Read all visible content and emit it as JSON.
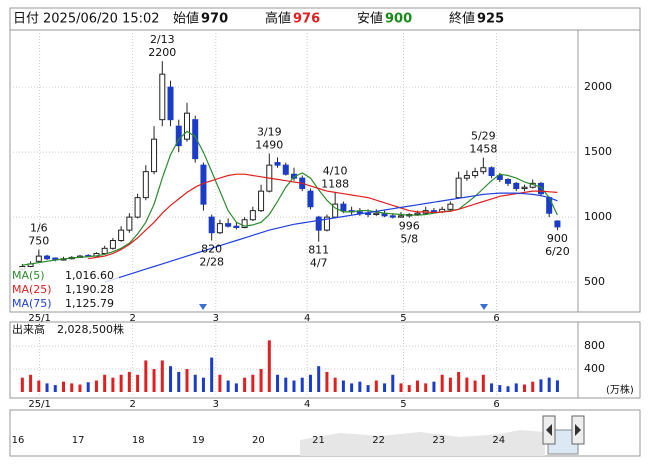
{
  "chart_data": {
    "type": "candlestick",
    "info": {
      "date_label": "日付",
      "date": "2025/06/20 15:02",
      "open_label": "始値",
      "open": 970,
      "high_label": "高値",
      "high": 976,
      "low_label": "安値",
      "low": 900,
      "close_label": "終値",
      "close": 925
    },
    "xlim": [
      -1.5,
      67.5
    ],
    "xticks": [
      {
        "value": 2.1,
        "label": "25/1"
      },
      {
        "value": 13.4,
        "label": "2"
      },
      {
        "value": 23.5,
        "label": "3"
      },
      {
        "value": 34.6,
        "label": "4"
      },
      {
        "value": 46.3,
        "label": "5"
      },
      {
        "value": 57.6,
        "label": "6"
      }
    ],
    "ylim": [
      270,
      2440
    ],
    "yticks": [
      500,
      1000,
      1500,
      2000
    ],
    "up_color": "#ffffff",
    "down_color": "#1a3cc8",
    "open": [
      600,
      620,
      660,
      700,
      685,
      670,
      680,
      690,
      705,
      700,
      720,
      760,
      820,
      900,
      1000,
      1150,
      1350,
      1750,
      2000,
      1700,
      1600,
      1750,
      1400,
      1000,
      880,
      950,
      930,
      920,
      980,
      1050,
      1200,
      1420,
      1400,
      1330,
      1300,
      1200,
      1000,
      900,
      1000,
      1100,
      1050,
      1040,
      1030,
      1020,
      1030,
      1010,
      1000,
      1010,
      1020,
      1030,
      1050,
      1040,
      1060,
      1150,
      1300,
      1320,
      1350,
      1380,
      1320,
      1290,
      1260,
      1220,
      1230,
      1260,
      1150,
      970
    ],
    "high": [
      640,
      660,
      750,
      710,
      690,
      695,
      700,
      710,
      715,
      730,
      780,
      840,
      930,
      1030,
      1180,
      1400,
      1700,
      2200,
      2050,
      1750,
      1880,
      1780,
      1420,
      1020,
      980,
      990,
      960,
      1000,
      1080,
      1250,
      1490,
      1460,
      1420,
      1380,
      1320,
      1220,
      1010,
      1020,
      1188,
      1120,
      1080,
      1070,
      1060,
      1060,
      1050,
      1030,
      1040,
      1030,
      1050,
      1080,
      1070,
      1080,
      1120,
      1350,
      1360,
      1380,
      1458,
      1390,
      1340,
      1300,
      1270,
      1250,
      1290,
      1270,
      1160,
      976
    ],
    "low": [
      590,
      610,
      650,
      670,
      660,
      665,
      675,
      685,
      690,
      695,
      715,
      750,
      810,
      880,
      990,
      1130,
      1330,
      1700,
      1700,
      1500,
      1580,
      1420,
      1050,
      820,
      870,
      920,
      905,
      915,
      970,
      1040,
      1190,
      1380,
      1320,
      1280,
      1200,
      1060,
      811,
      890,
      990,
      1030,
      1020,
      1010,
      1000,
      1010,
      1000,
      990,
      995,
      996,
      1010,
      1020,
      1030,
      1030,
      1050,
      1140,
      1280,
      1300,
      1330,
      1300,
      1270,
      1240,
      1200,
      1200,
      1220,
      1160,
      1000,
      900
    ],
    "close": [
      620,
      640,
      700,
      680,
      670,
      680,
      690,
      700,
      700,
      720,
      760,
      820,
      900,
      1000,
      1150,
      1350,
      1600,
      2100,
      1750,
      1550,
      1800,
      1450,
      1100,
      880,
      950,
      930,
      920,
      980,
      1050,
      1200,
      1400,
      1400,
      1330,
      1300,
      1220,
      1080,
      900,
      1000,
      1100,
      1050,
      1040,
      1030,
      1020,
      1030,
      1010,
      1000,
      1010,
      1020,
      1030,
      1050,
      1040,
      1060,
      1100,
      1300,
      1320,
      1350,
      1380,
      1320,
      1290,
      1260,
      1220,
      1230,
      1260,
      1180,
      1030,
      925
    ],
    "annotations": [
      {
        "date": "1/6",
        "value": 750
      },
      {
        "date": "2/13",
        "value": 2200
      },
      {
        "date": "2/28",
        "value": 820
      },
      {
        "date": "3/19",
        "value": 1490
      },
      {
        "date": "4/7",
        "value": 811
      },
      {
        "date": "4/10",
        "value": 1188
      },
      {
        "date": "5/8",
        "value": 996
      },
      {
        "date": "5/29",
        "value": 1458
      },
      {
        "date": "6/20",
        "value": 900
      }
    ],
    "series": [
      {
        "name": "MA(5)",
        "color": "#2e8b2e",
        "legend_value": {
          "value": 1016.6,
          "label": "1,016.60"
        },
        "values": [
          630,
          640,
          650,
          660,
          670,
          678,
          686,
          690,
          696,
          702,
          714,
          734,
          760,
          800,
          870,
          960,
          1100,
          1300,
          1480,
          1600,
          1660,
          1620,
          1500,
          1350,
          1200,
          1050,
          960,
          930,
          940,
          960,
          1020,
          1120,
          1230,
          1310,
          1340,
          1300,
          1210,
          1130,
          1070,
          1040,
          1040,
          1050,
          1050,
          1040,
          1030,
          1025,
          1020,
          1015,
          1015,
          1020,
          1030,
          1040,
          1050,
          1060,
          1110,
          1160,
          1220,
          1280,
          1330,
          1320,
          1300,
          1270,
          1250,
          1230,
          1150,
          1016.6
        ]
      },
      {
        "name": "MA(25)",
        "color": "#e02020",
        "legend_value": {
          "value": 1190.28,
          "label": "1,190.28"
        },
        "values": [
          null,
          null,
          null,
          null,
          null,
          null,
          null,
          null,
          680,
          690,
          700,
          720,
          750,
          790,
          840,
          900,
          960,
          1030,
          1090,
          1140,
          1190,
          1230,
          1260,
          1280,
          1300,
          1320,
          1330,
          1330,
          1320,
          1310,
          1300,
          1290,
          1280,
          1270,
          1260,
          1240,
          1220,
          1200,
          1190,
          1180,
          1170,
          1160,
          1150,
          1130,
          1110,
          1090,
          1070,
          1050,
          1040,
          1040,
          1035,
          1040,
          1045,
          1060,
          1080,
          1100,
          1120,
          1140,
          1160,
          1170,
          1180,
          1190,
          1200,
          1200,
          1195,
          1190.28
        ]
      },
      {
        "name": "MA(75)",
        "color": "#2040e0",
        "legend_value": {
          "value": 1125.79,
          "label": "1,125.79"
        },
        "values": [
          null,
          null,
          null,
          null,
          null,
          null,
          null,
          null,
          null,
          null,
          500,
          520,
          540,
          560,
          580,
          600,
          620,
          640,
          660,
          680,
          700,
          720,
          740,
          760,
          780,
          800,
          820,
          840,
          860,
          880,
          900,
          915,
          930,
          945,
          955,
          965,
          975,
          985,
          995,
          1005,
          1015,
          1025,
          1035,
          1045,
          1055,
          1065,
          1075,
          1085,
          1095,
          1105,
          1115,
          1125,
          1135,
          1145,
          1155,
          1165,
          1175,
          1180,
          1185,
          1185,
          1185,
          1180,
          1175,
          1165,
          1150,
          1125.79
        ]
      }
    ],
    "volume": {
      "title": "出来高",
      "latest": "2,028,500株",
      "unit": "(万株)",
      "ylim": [
        0,
        1150
      ],
      "yticks": [
        400,
        800
      ],
      "values": [
        250,
        300,
        200,
        150,
        120,
        180,
        150,
        130,
        170,
        200,
        300,
        250,
        300,
        350,
        300,
        550,
        400,
        550,
        450,
        350,
        400,
        300,
        250,
        600,
        300,
        200,
        150,
        250,
        300,
        400,
        900,
        300,
        250,
        200,
        250,
        300,
        450,
        350,
        250,
        200,
        150,
        180,
        120,
        200,
        150,
        300,
        150,
        120,
        200,
        150,
        180,
        300,
        250,
        350,
        250,
        200,
        300,
        150,
        120,
        100,
        150,
        130,
        180,
        220,
        250,
        202.85
      ]
    },
    "navigator": {
      "labels": [
        "16",
        "17",
        "18",
        "19",
        "20",
        "21",
        "22",
        "23",
        "24"
      ]
    }
  }
}
